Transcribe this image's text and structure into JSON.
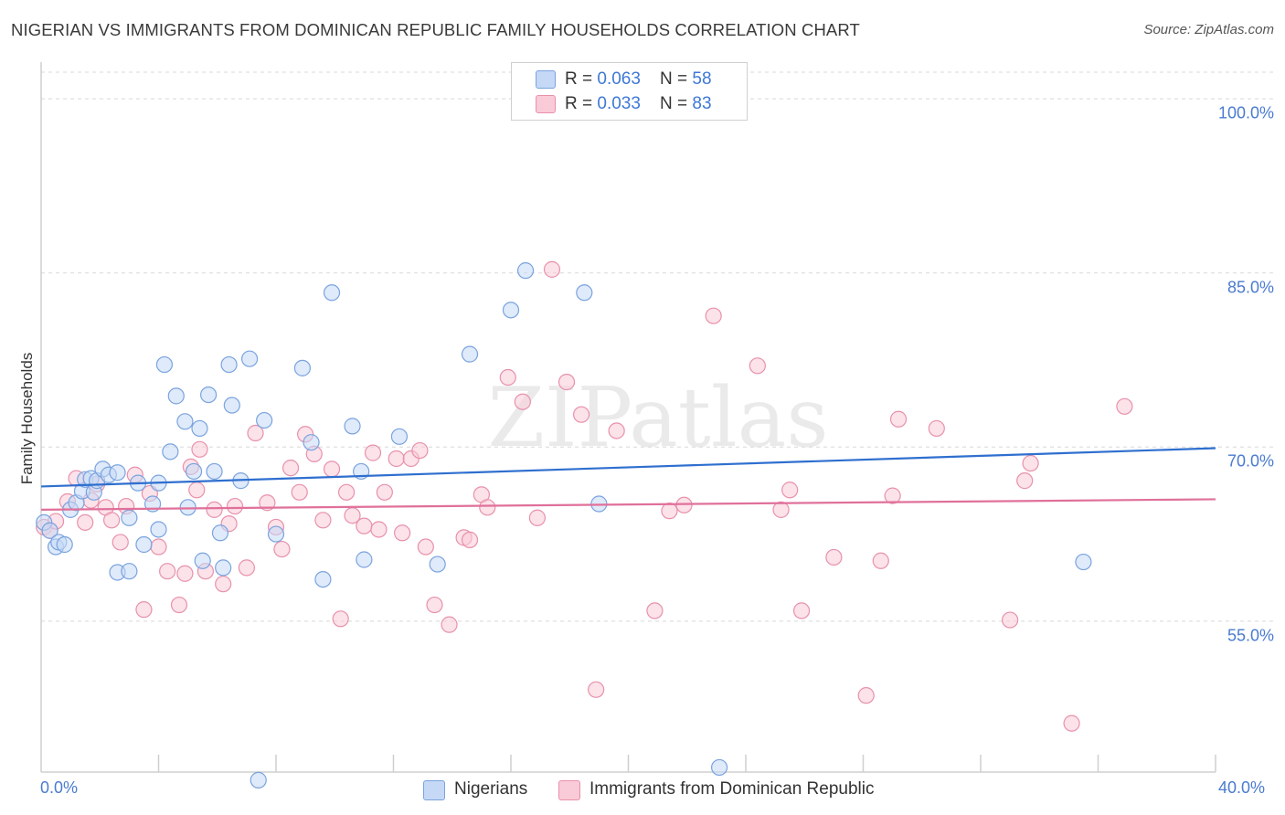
{
  "title": "NIGERIAN VS IMMIGRANTS FROM DOMINICAN REPUBLIC FAMILY HOUSEHOLDS CORRELATION CHART",
  "source": "Source: ZipAtlas.com",
  "watermark": "ZIPatlas",
  "legend": {
    "rows": [
      {
        "r_label": "R = ",
        "r_value": "0.063",
        "n_label": "N = ",
        "n_value": "58"
      },
      {
        "r_label": "R = ",
        "r_value": "0.033",
        "n_label": "N = ",
        "n_value": "83"
      }
    ]
  },
  "bottom_legend": [
    "Nigerians",
    "Immigrants from Dominican Republic"
  ],
  "colors": {
    "blue_fill": "#c5d8f5",
    "blue_stroke": "#7aa3df",
    "blue_line": "#2f6fcf",
    "pink_fill": "#f9cad7",
    "pink_stroke": "#e891ab",
    "pink_line": "#e0709a",
    "tick_text": "#4a7bd0",
    "grid": "#d8d8d8"
  },
  "chart_data": {
    "type": "scatter",
    "title": "NIGERIAN VS IMMIGRANTS FROM DOMINICAN REPUBLIC FAMILY HOUSEHOLDS CORRELATION CHART",
    "xlabel": "",
    "ylabel": "Family Households",
    "xlim": [
      0,
      40
    ],
    "ylim": [
      42,
      103
    ],
    "x_tick_labels": [
      "0.0%",
      "40.0%"
    ],
    "y_ticks": [
      100,
      85,
      70,
      55
    ],
    "y_tick_labels": [
      "100.0%",
      "85.0%",
      "70.0%",
      "55.0%"
    ],
    "grid": "horizontal-dashed",
    "series": [
      {
        "name": "Nigerians",
        "color": "blue",
        "R": 0.063,
        "N": 58,
        "trend": {
          "x": [
            0,
            40
          ],
          "y": [
            66.6,
            69.9
          ]
        },
        "points": [
          [
            0.1,
            63.5
          ],
          [
            0.3,
            62.8
          ],
          [
            0.5,
            61.4
          ],
          [
            0.6,
            61.8
          ],
          [
            0.8,
            61.6
          ],
          [
            1.0,
            64.6
          ],
          [
            1.2,
            65.2
          ],
          [
            1.4,
            66.2
          ],
          [
            1.5,
            67.2
          ],
          [
            1.7,
            67.3
          ],
          [
            1.8,
            66.1
          ],
          [
            1.9,
            67.1
          ],
          [
            2.1,
            68.1
          ],
          [
            2.3,
            67.6
          ],
          [
            2.6,
            67.8
          ],
          [
            2.6,
            59.2
          ],
          [
            3.0,
            59.3
          ],
          [
            3.0,
            63.9
          ],
          [
            3.3,
            66.9
          ],
          [
            3.5,
            61.6
          ],
          [
            3.8,
            65.1
          ],
          [
            4.0,
            66.9
          ],
          [
            4.0,
            62.9
          ],
          [
            4.2,
            77.1
          ],
          [
            4.4,
            69.6
          ],
          [
            4.6,
            74.4
          ],
          [
            4.9,
            72.2
          ],
          [
            5.0,
            64.8
          ],
          [
            5.2,
            67.9
          ],
          [
            5.4,
            71.6
          ],
          [
            5.5,
            60.2
          ],
          [
            5.7,
            74.5
          ],
          [
            5.9,
            67.9
          ],
          [
            6.1,
            62.6
          ],
          [
            6.2,
            59.6
          ],
          [
            6.4,
            77.1
          ],
          [
            6.5,
            73.6
          ],
          [
            6.8,
            67.1
          ],
          [
            7.1,
            77.6
          ],
          [
            7.4,
            41.3
          ],
          [
            7.6,
            72.3
          ],
          [
            8.0,
            62.5
          ],
          [
            8.9,
            76.8
          ],
          [
            9.2,
            70.4
          ],
          [
            9.6,
            58.6
          ],
          [
            9.9,
            83.3
          ],
          [
            10.6,
            71.8
          ],
          [
            10.9,
            67.9
          ],
          [
            11.0,
            60.3
          ],
          [
            12.2,
            70.9
          ],
          [
            13.5,
            59.9
          ],
          [
            14.6,
            78.0
          ],
          [
            16.0,
            81.8
          ],
          [
            16.5,
            85.2
          ],
          [
            18.5,
            83.3
          ],
          [
            19.0,
            65.1
          ],
          [
            23.1,
            42.4
          ],
          [
            35.5,
            60.1
          ]
        ]
      },
      {
        "name": "Immigrants from Dominican Republic",
        "color": "pink",
        "R": 0.033,
        "N": 83,
        "trend": {
          "x": [
            0,
            40
          ],
          "y": [
            64.6,
            65.5
          ]
        },
        "points": [
          [
            0.1,
            63.1
          ],
          [
            0.3,
            62.8
          ],
          [
            0.5,
            63.6
          ],
          [
            0.9,
            65.3
          ],
          [
            1.2,
            67.3
          ],
          [
            1.5,
            63.5
          ],
          [
            1.7,
            65.4
          ],
          [
            1.9,
            66.8
          ],
          [
            2.2,
            64.8
          ],
          [
            2.4,
            63.7
          ],
          [
            2.7,
            61.8
          ],
          [
            2.9,
            64.9
          ],
          [
            3.2,
            67.6
          ],
          [
            3.5,
            56.0
          ],
          [
            3.7,
            66.0
          ],
          [
            4.0,
            61.4
          ],
          [
            4.3,
            59.3
          ],
          [
            4.7,
            56.4
          ],
          [
            4.9,
            59.1
          ],
          [
            5.1,
            68.3
          ],
          [
            5.3,
            66.3
          ],
          [
            5.4,
            69.8
          ],
          [
            5.6,
            59.3
          ],
          [
            5.9,
            64.6
          ],
          [
            6.2,
            58.2
          ],
          [
            6.4,
            63.4
          ],
          [
            6.6,
            64.9
          ],
          [
            7.0,
            59.6
          ],
          [
            7.3,
            71.2
          ],
          [
            7.7,
            65.2
          ],
          [
            8.0,
            63.1
          ],
          [
            8.2,
            61.2
          ],
          [
            8.5,
            68.2
          ],
          [
            8.8,
            66.1
          ],
          [
            9.0,
            71.1
          ],
          [
            9.3,
            69.4
          ],
          [
            9.6,
            63.7
          ],
          [
            9.9,
            68.1
          ],
          [
            10.2,
            55.2
          ],
          [
            10.4,
            66.1
          ],
          [
            10.6,
            64.1
          ],
          [
            11.0,
            63.2
          ],
          [
            11.3,
            69.5
          ],
          [
            11.5,
            62.9
          ],
          [
            11.7,
            66.1
          ],
          [
            12.1,
            69.0
          ],
          [
            12.3,
            62.6
          ],
          [
            12.6,
            69.0
          ],
          [
            12.9,
            69.7
          ],
          [
            13.1,
            61.4
          ],
          [
            13.4,
            56.4
          ],
          [
            13.9,
            54.7
          ],
          [
            14.4,
            62.2
          ],
          [
            14.6,
            62.0
          ],
          [
            15.0,
            65.9
          ],
          [
            15.2,
            64.8
          ],
          [
            15.9,
            76.0
          ],
          [
            16.4,
            73.9
          ],
          [
            16.9,
            63.9
          ],
          [
            17.4,
            85.3
          ],
          [
            17.9,
            75.6
          ],
          [
            18.4,
            72.8
          ],
          [
            18.9,
            49.1
          ],
          [
            19.6,
            71.4
          ],
          [
            20.9,
            55.9
          ],
          [
            21.4,
            64.5
          ],
          [
            21.9,
            65.0
          ],
          [
            22.9,
            81.3
          ],
          [
            24.4,
            77.0
          ],
          [
            25.2,
            64.6
          ],
          [
            25.5,
            66.3
          ],
          [
            25.9,
            55.9
          ],
          [
            27.0,
            60.5
          ],
          [
            28.1,
            48.6
          ],
          [
            28.6,
            60.2
          ],
          [
            29.0,
            65.8
          ],
          [
            29.2,
            72.4
          ],
          [
            30.5,
            71.6
          ],
          [
            33.0,
            55.1
          ],
          [
            33.5,
            67.1
          ],
          [
            33.7,
            68.6
          ],
          [
            35.1,
            46.2
          ],
          [
            36.9,
            73.5
          ]
        ]
      }
    ]
  }
}
